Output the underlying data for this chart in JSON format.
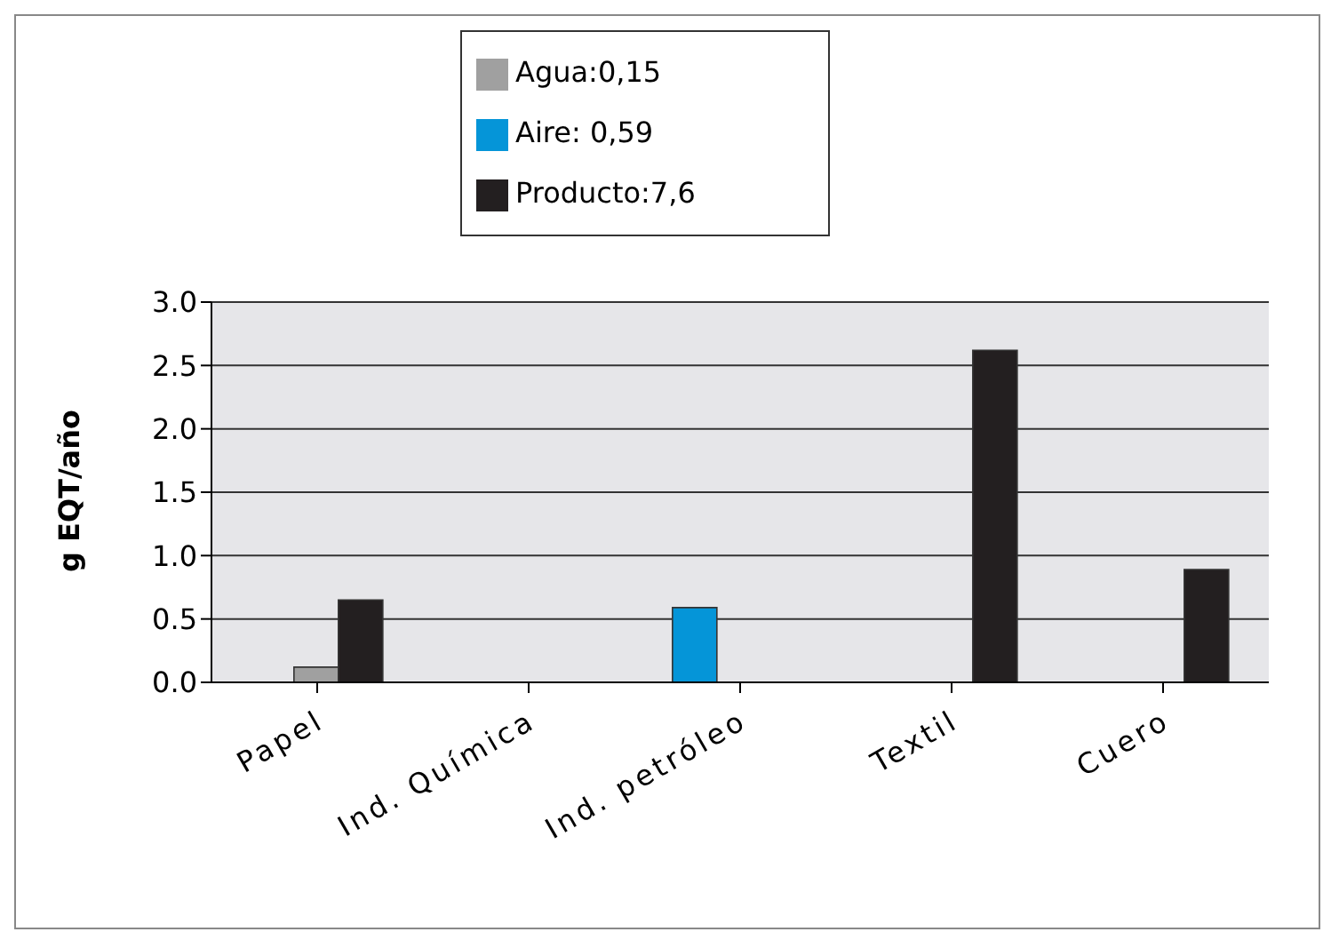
{
  "chart_data": {
    "type": "bar",
    "ylabel": "g EQT/año",
    "categories": [
      "Papel",
      "Ind. Química",
      "Ind. petróleo",
      "Textil",
      "Cuero"
    ],
    "series": [
      {
        "name": "Aire: 0,59",
        "color": "#0595d8",
        "values": [
          0,
          0,
          0.59,
          0,
          0
        ]
      },
      {
        "name": "Agua:0,15",
        "color": "#a0a0a0",
        "values": [
          0.12,
          0,
          0,
          0,
          0
        ]
      },
      {
        "name": "Producto:7,6",
        "color": "#231f20",
        "values": [
          0.65,
          0,
          0,
          2.62,
          0.89
        ]
      }
    ],
    "ylim": [
      0,
      3
    ],
    "yticks": [
      {
        "value": 0,
        "label": "0.0"
      },
      {
        "value": 0.5,
        "label": "0.5"
      },
      {
        "value": 1,
        "label": "1.0"
      },
      {
        "value": 1.5,
        "label": "1.5"
      },
      {
        "value": 2,
        "label": "2.0"
      },
      {
        "value": 2.5,
        "label": "2.5"
      },
      {
        "value": 3,
        "label": "3.0"
      }
    ],
    "grid": "y",
    "legend": "top"
  }
}
